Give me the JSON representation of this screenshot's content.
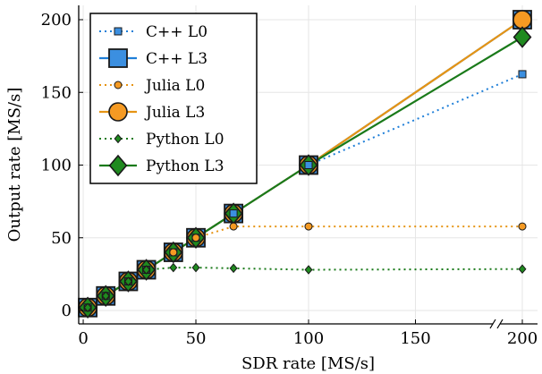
{
  "chart_data": {
    "type": "line",
    "xlabel": "SDR rate [MS/s]",
    "ylabel": "Output rate [MS/s]",
    "x_ticks": [
      0,
      50,
      100,
      150,
      200
    ],
    "y_ticks": [
      0,
      50,
      100,
      150,
      200
    ],
    "x_tick_labels": [
      "0",
      "50",
      "100",
      "150",
      "200"
    ],
    "y_tick_labels": [
      "0",
      "50",
      "100",
      "150",
      "200"
    ],
    "xlim": [
      -2,
      205
    ],
    "ylim": [
      -3,
      208
    ],
    "x_axis_break": true,
    "grid": true,
    "legend_position": "top-left",
    "series": [
      {
        "name": "C++ L0",
        "style": "dotted",
        "marker": "square",
        "marker_size": "small",
        "color": "#1f7fd8",
        "marker_fill": "#3b8fe0",
        "x": [
          2,
          10,
          20,
          28,
          40,
          50,
          66.7,
          100,
          200
        ],
        "y": [
          2,
          10,
          20,
          28,
          40,
          50,
          66.7,
          100,
          162.5
        ]
      },
      {
        "name": "C++ L3",
        "style": "solid",
        "marker": "square",
        "marker_size": "large",
        "color": "#1f7fd8",
        "marker_fill": "#3b8fe0",
        "x": [
          2,
          10,
          20,
          28,
          40,
          50,
          66.7,
          100,
          200
        ],
        "y": [
          2,
          10,
          20,
          28,
          40,
          50,
          66.7,
          100,
          200
        ]
      },
      {
        "name": "Julia L0",
        "style": "dotted",
        "marker": "circle",
        "marker_size": "small",
        "color": "#e69414",
        "marker_fill": "#f59a23",
        "x": [
          2,
          10,
          20,
          28,
          40,
          50,
          66.7,
          100,
          200
        ],
        "y": [
          2,
          10,
          20,
          28,
          40,
          50,
          57.8,
          57.8,
          57.8
        ]
      },
      {
        "name": "Julia L3",
        "style": "solid",
        "marker": "circle",
        "marker_size": "large",
        "color": "#e69414",
        "marker_fill": "#f59a23",
        "x": [
          2,
          10,
          20,
          28,
          40,
          50,
          66.7,
          100,
          200
        ],
        "y": [
          2,
          10,
          20,
          28,
          40,
          50,
          66.7,
          100,
          200
        ]
      },
      {
        "name": "Python L0",
        "style": "dotted",
        "marker": "diamond",
        "marker_size": "small",
        "color": "#1a7a1a",
        "marker_fill": "#1f8a1f",
        "x": [
          2,
          10,
          20,
          28,
          40,
          50,
          66.7,
          100,
          200
        ],
        "y": [
          2,
          10,
          20,
          28,
          29.5,
          29.5,
          29.0,
          28.0,
          28.5
        ]
      },
      {
        "name": "Python L3",
        "style": "solid",
        "marker": "diamond",
        "marker_size": "large",
        "color": "#1a7a1a",
        "marker_fill": "#1f8a1f",
        "x": [
          2,
          10,
          20,
          28,
          40,
          50,
          66.7,
          100,
          200
        ],
        "y": [
          2,
          10,
          20,
          28,
          40,
          50,
          66.7,
          100,
          188
        ]
      }
    ]
  }
}
